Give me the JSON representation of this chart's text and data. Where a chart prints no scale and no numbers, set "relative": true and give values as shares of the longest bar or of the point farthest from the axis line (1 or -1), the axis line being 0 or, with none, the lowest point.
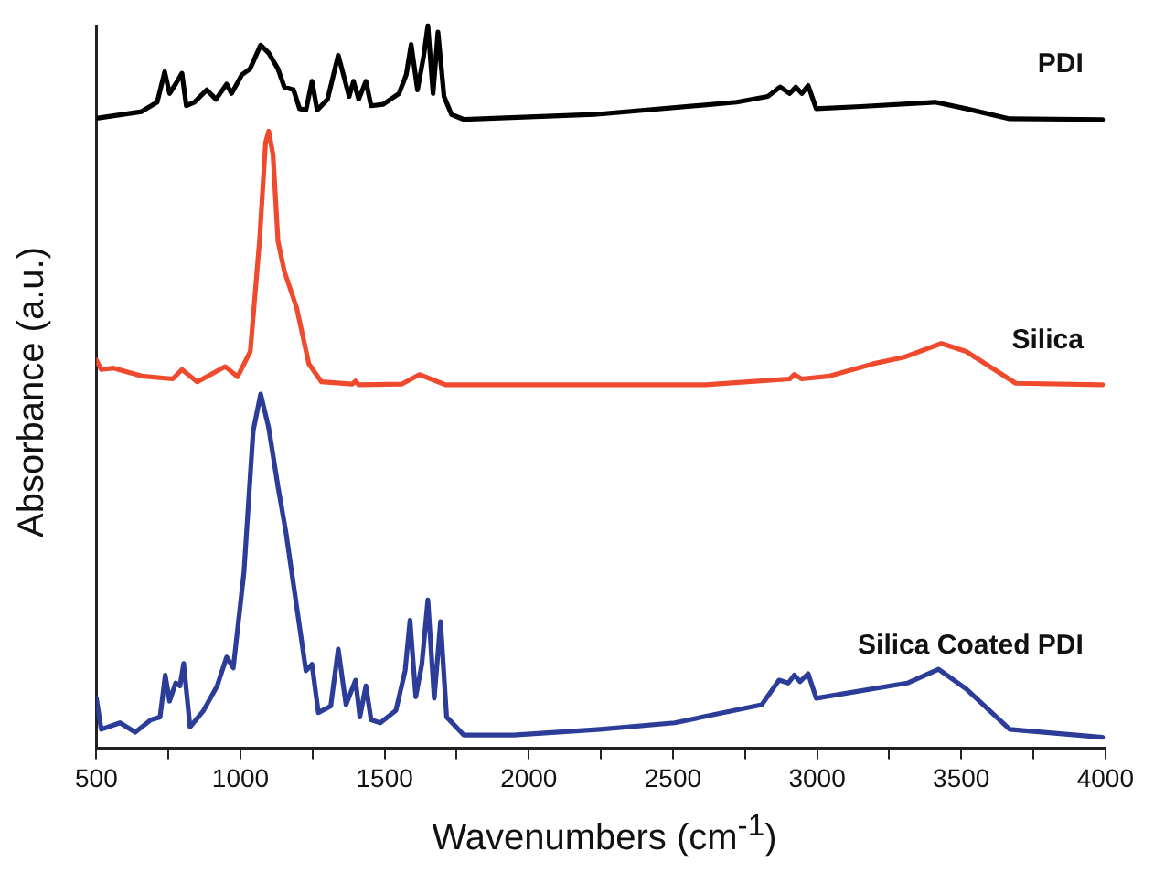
{
  "chart_data": {
    "type": "line",
    "relative": true,
    "xlabel": "Wavenumbers (cm$^{-1}$)",
    "ylabel": "Absorbance (a.u.)",
    "xlim": [
      500,
      4000
    ],
    "xticks": [
      500,
      {
        "value": 750,
        "label": null
      },
      1000,
      {
        "value": 1250,
        "label": null
      },
      1500,
      {
        "value": 1750,
        "label": null
      },
      2000,
      {
        "value": 2250,
        "label": null
      },
      2500,
      {
        "value": 2750,
        "label": null
      },
      3000,
      {
        "value": 3250,
        "label": null
      },
      3500,
      {
        "value": 3750,
        "label": null
      },
      4000
    ],
    "grid": false,
    "legend": false,
    "marker": "none",
    "line_style": "solid",
    "series": [
      {
        "name": "PDI",
        "color": "#000000",
        "x": [
          506,
          657,
          711,
          737,
          754,
          775,
          797,
          812,
          840,
          883,
          915,
          952,
          969,
          1005,
          1033,
          1070,
          1098,
          1130,
          1152,
          1184,
          1205,
          1227,
          1248,
          1266,
          1302,
          1339,
          1363,
          1377,
          1392,
          1410,
          1435,
          1453,
          1495,
          1550,
          1575,
          1592,
          1614,
          1635,
          1650,
          1668,
          1685,
          1706,
          1732,
          1775,
          2227,
          2721,
          2829,
          2872,
          2905,
          2926,
          2947,
          2969,
          2997,
          3152,
          3410,
          3517,
          3668,
          3990
        ],
        "values": [
          0.872,
          0.881,
          0.894,
          0.936,
          0.906,
          0.919,
          0.934,
          0.889,
          0.894,
          0.911,
          0.898,
          0.919,
          0.906,
          0.932,
          0.94,
          0.973,
          0.962,
          0.94,
          0.915,
          0.911,
          0.885,
          0.883,
          0.923,
          0.883,
          0.898,
          0.959,
          0.923,
          0.902,
          0.923,
          0.898,
          0.923,
          0.889,
          0.891,
          0.906,
          0.932,
          0.974,
          0.911,
          0.957,
          1,
          0.906,
          0.991,
          0.902,
          0.877,
          0.87,
          0.877,
          0.894,
          0.902,
          0.915,
          0.906,
          0.915,
          0.906,
          0.917,
          0.885,
          0.888,
          0.894,
          0.885,
          0.871,
          0.87
        ]
      },
      {
        "name": "Silica",
        "color": "#f04a2e",
        "x": [
          500,
          517,
          560,
          657,
          765,
          797,
          850,
          947,
          990,
          1034,
          1066,
          1087,
          1098,
          1113,
          1130,
          1152,
          1195,
          1237,
          1281,
          1388,
          1399,
          1410,
          1560,
          1621,
          1711,
          2248,
          2614,
          2829,
          2905,
          2921,
          2947,
          3044,
          3195,
          3302,
          3431,
          3517,
          3689,
          3990
        ],
        "values": [
          0.537,
          0.524,
          0.526,
          0.515,
          0.511,
          0.524,
          0.507,
          0.528,
          0.514,
          0.549,
          0.702,
          0.838,
          0.854,
          0.821,
          0.702,
          0.66,
          0.609,
          0.532,
          0.507,
          0.504,
          0.508,
          0.503,
          0.504,
          0.517,
          0.503,
          0.503,
          0.503,
          0.509,
          0.511,
          0.517,
          0.511,
          0.515,
          0.532,
          0.541,
          0.56,
          0.549,
          0.505,
          0.503
        ]
      },
      {
        "name": "Silica Coated PDI",
        "color": "#2b3d98",
        "x": [
          500,
          517,
          582,
          635,
          689,
          721,
          739,
          754,
          775,
          790,
          803,
          825,
          872,
          919,
          952,
          975,
          1012,
          1044,
          1070,
          1098,
          1130,
          1158,
          1184,
          1227,
          1248,
          1270,
          1313,
          1339,
          1366,
          1399,
          1414,
          1435,
          1453,
          1485,
          1539,
          1571,
          1588,
          1608,
          1629,
          1650,
          1672,
          1694,
          1715,
          1775,
          1947,
          2248,
          2506,
          2808,
          2868,
          2900,
          2921,
          2941,
          2969,
          2997,
          3087,
          3313,
          3421,
          3517,
          3668,
          3990
        ],
        "values": [
          0.069,
          0.026,
          0.035,
          0.022,
          0.039,
          0.043,
          0.101,
          0.065,
          0.09,
          0.086,
          0.117,
          0.029,
          0.052,
          0.086,
          0.126,
          0.111,
          0.243,
          0.439,
          0.49,
          0.443,
          0.362,
          0.298,
          0.226,
          0.107,
          0.116,
          0.049,
          0.058,
          0.137,
          0.06,
          0.094,
          0.043,
          0.086,
          0.039,
          0.035,
          0.052,
          0.107,
          0.177,
          0.071,
          0.116,
          0.205,
          0.069,
          0.175,
          0.043,
          0.018,
          0.018,
          0.026,
          0.035,
          0.06,
          0.094,
          0.09,
          0.101,
          0.092,
          0.103,
          0.069,
          0.075,
          0.09,
          0.109,
          0.082,
          0.026,
          0.015
        ]
      }
    ]
  }
}
